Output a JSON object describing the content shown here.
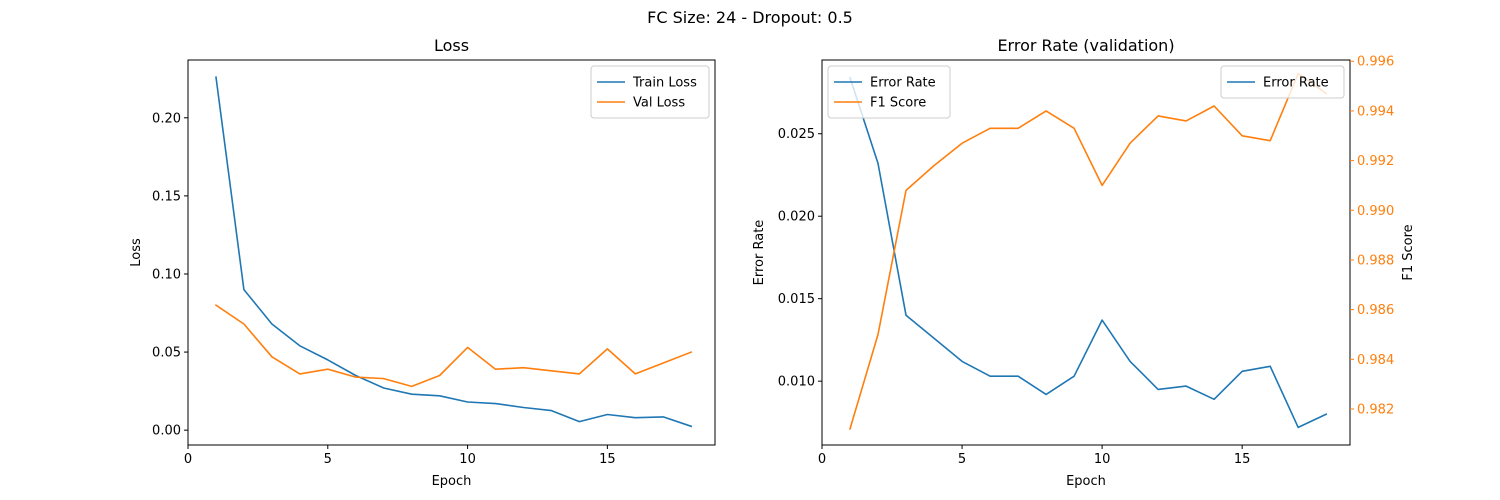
{
  "figure": {
    "suptitle": "FC Size: 24 - Dropout: 0.5"
  },
  "colors": {
    "blue": "#1f77b4",
    "orange": "#ff7f0e"
  },
  "chart_data": [
    {
      "type": "line",
      "title": "Loss",
      "xlabel": "Epoch",
      "ylabel": "Loss",
      "xlim": [
        0,
        18.85
      ],
      "ylim": [
        -0.0095,
        0.237
      ],
      "xticks": [
        0,
        5,
        10,
        15
      ],
      "yticks": [
        0.0,
        0.05,
        0.1,
        0.15,
        0.2
      ],
      "ytick_labels": [
        "0.00",
        "0.05",
        "0.10",
        "0.15",
        "0.20"
      ],
      "legend": "top-right",
      "x": [
        1,
        2,
        3,
        4,
        5,
        6,
        7,
        8,
        9,
        10,
        11,
        12,
        13,
        14,
        15,
        16,
        17,
        18
      ],
      "series": [
        {
          "name": "Train Loss",
          "color": "#1f77b4",
          "values": [
            0.226,
            0.09,
            0.068,
            0.054,
            0.045,
            0.035,
            0.027,
            0.023,
            0.022,
            0.018,
            0.017,
            0.0145,
            0.0125,
            0.0055,
            0.01,
            0.008,
            0.0085,
            0.0025
          ]
        },
        {
          "name": "Val Loss",
          "color": "#ff7f0e",
          "values": [
            0.08,
            0.068,
            0.047,
            0.036,
            0.039,
            0.034,
            0.033,
            0.028,
            0.035,
            0.053,
            0.039,
            0.04,
            0.038,
            0.036,
            0.052,
            0.036,
            0.043,
            0.05
          ]
        }
      ]
    },
    {
      "type": "line",
      "title": "Error Rate (validation)",
      "xlabel": "Epoch",
      "ylabel": "Error Rate",
      "ylabel_right": "F1 Score",
      "xlim": [
        0,
        18.85
      ],
      "ylim": [
        0.00613,
        0.02947
      ],
      "ylim_right": [
        0.98055,
        0.99605
      ],
      "xticks": [
        0,
        5,
        10,
        15
      ],
      "yticks": [
        0.01,
        0.015,
        0.02,
        0.025
      ],
      "ytick_labels": [
        "0.010",
        "0.015",
        "0.020",
        "0.025"
      ],
      "yticks_right": [
        0.982,
        0.984,
        0.986,
        0.988,
        0.99,
        0.992,
        0.994,
        0.996
      ],
      "ytick_labels_right": [
        "0.982",
        "0.984",
        "0.986",
        "0.988",
        "0.990",
        "0.992",
        "0.994",
        "0.996"
      ],
      "legend_left": {
        "placement": "top-left",
        "entries": [
          {
            "name": "Error Rate",
            "color": "#1f77b4"
          },
          {
            "name": "F1 Score",
            "color": "#ff7f0e"
          }
        ]
      },
      "legend_right": {
        "placement": "top-right",
        "entries": [
          {
            "name": "Error Rate",
            "color": "#1f77b4"
          }
        ]
      },
      "x": [
        1,
        2,
        3,
        4,
        5,
        6,
        7,
        8,
        9,
        10,
        11,
        12,
        13,
        14,
        15,
        16,
        17,
        18
      ],
      "series": [
        {
          "name": "Error Rate",
          "axis": "left",
          "color": "#1f77b4",
          "values": [
            0.0284,
            0.0232,
            0.014,
            0.0126,
            0.0112,
            0.0103,
            0.0103,
            0.0092,
            0.0103,
            0.0137,
            0.0112,
            0.0095,
            0.0097,
            0.0089,
            0.0106,
            0.0109,
            0.0072,
            0.008
          ]
        },
        {
          "name": "F1 Score",
          "axis": "right",
          "color": "#ff7f0e",
          "values": [
            0.9812,
            0.985,
            0.9908,
            0.9918,
            0.9927,
            0.9933,
            0.9933,
            0.994,
            0.9933,
            0.991,
            0.9927,
            0.9938,
            0.9936,
            0.9942,
            0.993,
            0.9928,
            0.9955,
            0.9947
          ]
        }
      ]
    }
  ]
}
